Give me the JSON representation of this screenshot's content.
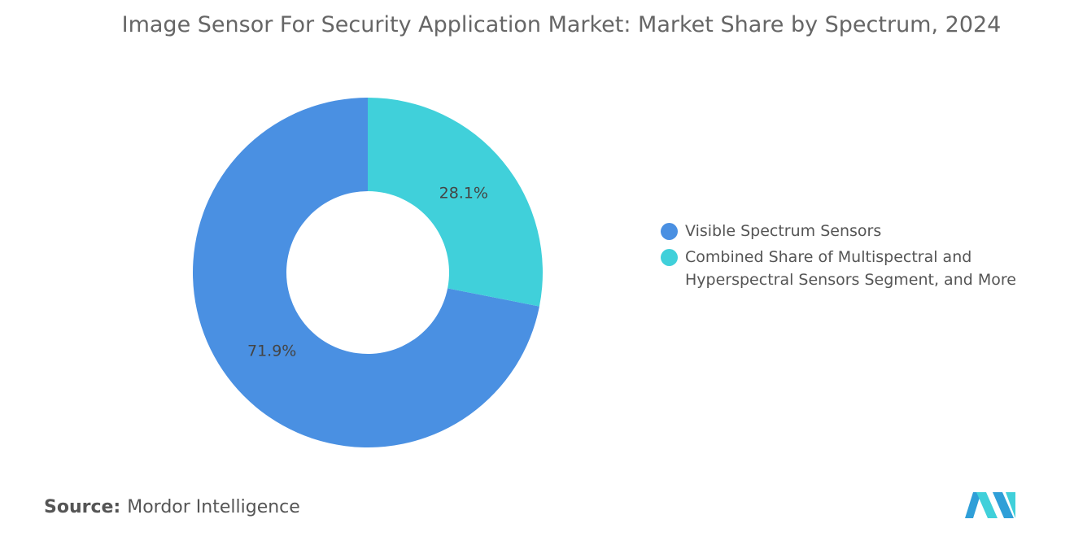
{
  "chart_data": {
    "type": "donut",
    "title": "Image Sensor For Security Application Market: Market Share by Spectrum, 2024",
    "categories": [
      "Visible Spectrum Sensors",
      "Combined Share of Multispectral and Hyperspectral Sensors Segment, and More"
    ],
    "values": [
      71.9,
      28.1
    ],
    "value_labels": [
      "71.9%",
      "28.1%"
    ],
    "colors": [
      "#4a90e2",
      "#40d0da"
    ]
  },
  "source": {
    "label": "Source:",
    "text": "Mordor Intelligence"
  }
}
